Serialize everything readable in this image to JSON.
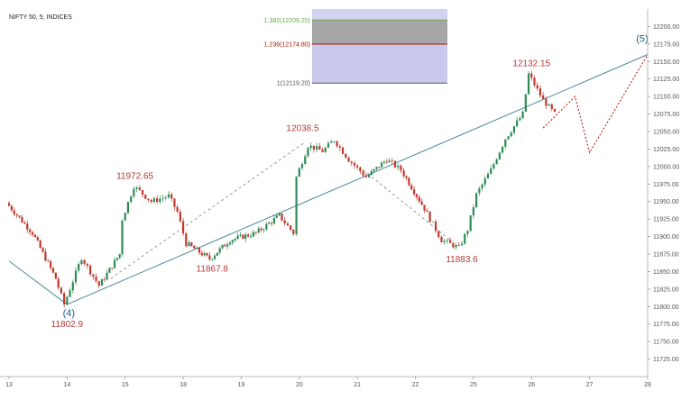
{
  "chart_data": {
    "type": "candlestick",
    "title": "NIFTY 50, 5, INDICES",
    "colors": {
      "up": "#2e8b57",
      "down": "#c0392b",
      "trendline": "#4a8a9a",
      "projection": "#c0392b",
      "fib_box": "#9c9ce0",
      "fib_top": "#666666",
      "fib_1382": "#6aa84f",
      "fib_1236": "#a61c00",
      "fib_1": "#555555"
    },
    "ylim": [
      11700,
      12225
    ],
    "y_ticks": [
      "12200.00",
      "12175.00",
      "12150.00",
      "12125.00",
      "12100.00",
      "12075.00",
      "12050.00",
      "12025.00",
      "12000.00",
      "11975.00",
      "11950.00",
      "11925.00",
      "11900.00",
      "11875.00",
      "11850.00",
      "11825.00",
      "11800.00",
      "11775.00",
      "11750.00",
      "11725.00"
    ],
    "x_ticks": [
      "13",
      "14",
      "15",
      "18",
      "19",
      "20",
      "21",
      "22",
      "25",
      "26",
      "27",
      "28"
    ],
    "path_points": [
      {
        "day": "13",
        "frac": 0.0,
        "price": 11948
      },
      {
        "day": "13",
        "frac": 0.45,
        "price": 11905
      },
      {
        "day": "13",
        "frac": 0.85,
        "price": 11840
      },
      {
        "day": "14",
        "frac": 0.0,
        "price": 11803
      },
      {
        "day": "14",
        "frac": 0.3,
        "price": 11870
      },
      {
        "day": "14",
        "frac": 0.6,
        "price": 11830
      },
      {
        "day": "14",
        "frac": 0.95,
        "price": 11875
      },
      {
        "day": "15",
        "frac": 0.0,
        "price": 11925
      },
      {
        "day": "15",
        "frac": 0.2,
        "price": 11972
      },
      {
        "day": "15",
        "frac": 0.5,
        "price": 11950
      },
      {
        "day": "15",
        "frac": 0.8,
        "price": 11958
      },
      {
        "day": "15",
        "frac": 0.95,
        "price": 11935
      },
      {
        "day": "18",
        "frac": 0.1,
        "price": 11890
      },
      {
        "day": "18",
        "frac": 0.5,
        "price": 11868
      },
      {
        "day": "18",
        "frac": 0.85,
        "price": 11895
      },
      {
        "day": "19",
        "frac": 0.3,
        "price": 11905
      },
      {
        "day": "19",
        "frac": 0.7,
        "price": 11930
      },
      {
        "day": "19",
        "frac": 0.95,
        "price": 11905
      },
      {
        "day": "20",
        "frac": 0.0,
        "price": 11985
      },
      {
        "day": "20",
        "frac": 0.2,
        "price": 12030
      },
      {
        "day": "20",
        "frac": 0.45,
        "price": 12022
      },
      {
        "day": "20",
        "frac": 0.65,
        "price": 12038
      },
      {
        "day": "20",
        "frac": 0.9,
        "price": 12010
      },
      {
        "day": "21",
        "frac": 0.2,
        "price": 11985
      },
      {
        "day": "21",
        "frac": 0.55,
        "price": 12010
      },
      {
        "day": "21",
        "frac": 0.8,
        "price": 11995
      },
      {
        "day": "22",
        "frac": 0.2,
        "price": 11940
      },
      {
        "day": "22",
        "frac": 0.5,
        "price": 11895
      },
      {
        "day": "22",
        "frac": 0.8,
        "price": 11884
      },
      {
        "day": "22",
        "frac": 0.95,
        "price": 11910
      },
      {
        "day": "25",
        "frac": 0.1,
        "price": 11960
      },
      {
        "day": "25",
        "frac": 0.35,
        "price": 11995
      },
      {
        "day": "25",
        "frac": 0.6,
        "price": 12040
      },
      {
        "day": "25",
        "frac": 0.9,
        "price": 12075
      },
      {
        "day": "26",
        "frac": 0.0,
        "price": 12132
      },
      {
        "day": "26",
        "frac": 0.25,
        "price": 12095
      },
      {
        "day": "26",
        "frac": 0.45,
        "price": 12075
      }
    ],
    "trendlines": [
      {
        "from": {
          "day": "13",
          "frac": 0.0,
          "price": 11865
        },
        "to": {
          "day": "14",
          "frac": 0.0,
          "price": 11803
        }
      },
      {
        "from": {
          "day": "14",
          "frac": 0.0,
          "price": 11803
        },
        "to": {
          "day": "28",
          "frac": 0.0,
          "price": 12160
        }
      }
    ],
    "dashed_lines": [
      {
        "from": {
          "day": "14",
          "frac": 0.75,
          "price": 11840
        },
        "to": {
          "day": "20",
          "frac": 0.1,
          "price": 12035
        }
      },
      {
        "from": {
          "day": "21",
          "frac": 0.1,
          "price": 11995
        },
        "to": {
          "day": "22",
          "frac": 0.6,
          "price": 11895
        }
      }
    ],
    "projection": [
      {
        "day": "26",
        "frac": 0.2,
        "price": 12055
      },
      {
        "day": "26",
        "frac": 0.75,
        "price": 12100
      },
      {
        "day": "27",
        "frac": 0.0,
        "price": 12020
      },
      {
        "day": "28",
        "frac": 0.0,
        "price": 12160
      }
    ],
    "annotations": [
      {
        "label": "11972.65",
        "day": "15",
        "frac": 0.2,
        "price": 11972
      },
      {
        "label": "11802.9",
        "day": "14",
        "frac": 0.0,
        "price": 11803
      },
      {
        "label": "11867.8",
        "day": "18",
        "frac": 0.5,
        "price": 11868
      },
      {
        "label": "12038.5",
        "day": "20",
        "frac": 0.15,
        "price": 12038
      },
      {
        "label": "11883.6",
        "day": "22",
        "frac": 0.8,
        "price": 11884
      },
      {
        "label": "12132.15",
        "day": "26",
        "frac": 0.0,
        "price": 12132
      }
    ],
    "wave_labels": [
      {
        "label": "(4)",
        "day": "14",
        "frac": 0.0,
        "price": 11803
      },
      {
        "label": "(5)",
        "day": "28",
        "frac": 0.0,
        "price": 12160
      }
    ],
    "fib_levels": [
      {
        "label": "1.382(12209.20)",
        "price": 12209.2
      },
      {
        "label": "1.236(12174.80)",
        "price": 12174.8
      },
      {
        "label": "1(12119.20)",
        "price": 12119.2
      }
    ]
  }
}
